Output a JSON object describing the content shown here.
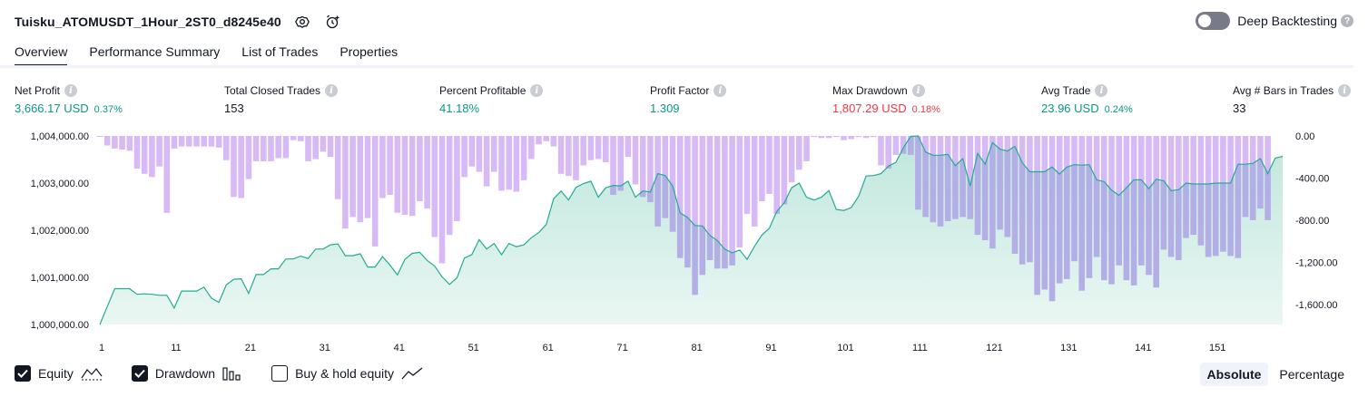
{
  "header": {
    "strategy_title": "Tuisku_ATOMUSDT_1Hour_2ST0_d8245e40",
    "deep_backtesting_label": "Deep Backtesting",
    "help_glyph": "?"
  },
  "tabs": [
    {
      "label": "Overview",
      "active": true
    },
    {
      "label": "Performance Summary",
      "active": false
    },
    {
      "label": "List of Trades",
      "active": false
    },
    {
      "label": "Properties",
      "active": false
    }
  ],
  "metrics": {
    "info_glyph": "i",
    "net_profit": {
      "label": "Net Profit",
      "value": "3,666.17 USD",
      "pct": "0.37%"
    },
    "total_closed_trades": {
      "label": "Total Closed Trades",
      "value": "153"
    },
    "percent_profitable": {
      "label": "Percent Profitable",
      "value": "41.18%"
    },
    "profit_factor": {
      "label": "Profit Factor",
      "value": "1.309"
    },
    "max_drawdown": {
      "label": "Max Drawdown",
      "value": "1,807.29 USD",
      "pct": "0.18%"
    },
    "avg_trade": {
      "label": "Avg Trade",
      "value": "23.96 USD",
      "pct": "0.24%"
    },
    "avg_bars": {
      "label": "Avg # Bars in Trades",
      "value": "33"
    }
  },
  "legend": {
    "equity": {
      "label": "Equity",
      "checked": true
    },
    "drawdown": {
      "label": "Drawdown",
      "checked": true
    },
    "buy_hold": {
      "label": "Buy & hold equity",
      "checked": false
    }
  },
  "mode": {
    "absolute": "Absolute",
    "percentage": "Percentage",
    "selected": "Absolute"
  },
  "colors": {
    "equity_line": "#22ab94",
    "equity_fill": "#d4efe8",
    "drawdown_bar": "#d7b9f5",
    "drawdown_overlap": "#b4aee6",
    "loss": "#f23645",
    "profit": "#089981"
  },
  "chart_data": {
    "type": "area",
    "x_ticks": [
      "1",
      "11",
      "21",
      "31",
      "41",
      "51",
      "61",
      "71",
      "81",
      "91",
      "101",
      "111",
      "121",
      "131",
      "141",
      "151"
    ],
    "y_left_ticks": [
      "1,004,000.00",
      "1,003,000.00",
      "1,002,000.00",
      "1,001,000.00",
      "1,000,000.00"
    ],
    "y_right_ticks": [
      "0.00",
      "-400.00",
      "-800.00",
      "-1,200.00",
      "-1,600.00"
    ],
    "y_left_range": [
      1000000,
      1004000
    ],
    "y_right_range": [
      -1800,
      0
    ],
    "series": [
      {
        "name": "Equity",
        "values": [
          1000000,
          1000380,
          1000760,
          1000760,
          1000760,
          1000640,
          1000650,
          1000640,
          1000620,
          1000620,
          1000350,
          1000710,
          1000710,
          1000710,
          1000790,
          1000560,
          1000470,
          1000840,
          1000960,
          1000970,
          1000660,
          1001060,
          1001060,
          1001180,
          1001180,
          1001390,
          1001390,
          1001450,
          1001400,
          1001600,
          1001600,
          1001690,
          1001710,
          1001460,
          1001460,
          1001500,
          1001220,
          1001220,
          1001440,
          1001260,
          1001050,
          1001380,
          1001510,
          1001530,
          1001360,
          1001240,
          1001010,
          1000850,
          1000990,
          1001410,
          1001480,
          1001800,
          1001600,
          1001720,
          1001480,
          1001720,
          1001650,
          1001690,
          1001840,
          1001950,
          1002120,
          1002670,
          1002830,
          1002640,
          1002910,
          1002990,
          1003040,
          1002700,
          1002900,
          1002950,
          1002940,
          1003040,
          1002700,
          1002830,
          1002810,
          1003200,
          1003160,
          1002940,
          1002370,
          1002270,
          1002100,
          1002090,
          1001890,
          1001780,
          1001600,
          1001520,
          1001580,
          1001380,
          1001660,
          1001900,
          1002040,
          1002400,
          1002580,
          1002900,
          1003000,
          1002700,
          1002640,
          1002700,
          1002840,
          1002440,
          1002420,
          1002480,
          1002720,
          1003150,
          1003160,
          1003200,
          1003360,
          1003440,
          1003750,
          1003990,
          1004000,
          1003660,
          1003590,
          1003590,
          1003610,
          1003370,
          1003520,
          1002940,
          1003630,
          1003400,
          1003860,
          1003720,
          1003680,
          1003780,
          1003430,
          1003240,
          1003240,
          1003240,
          1003340,
          1003190,
          1003340,
          1003390,
          1003380,
          1003390,
          1003070,
          1003030,
          1002850,
          1002740,
          1002900,
          1003070,
          1003070,
          1002880,
          1003080,
          1003050,
          1002840,
          1002860,
          1003000,
          1002980,
          1002980,
          1002980,
          1003000,
          1003000,
          1003000,
          1003400,
          1003400,
          1003420,
          1003520,
          1003200,
          1003530,
          1003570
        ]
      },
      {
        "name": "Drawdown",
        "values": [
          -5,
          -90,
          -120,
          -130,
          -140,
          -310,
          -360,
          -390,
          -290,
          -730,
          -120,
          -100,
          -100,
          -100,
          -100,
          -100,
          -110,
          -230,
          -580,
          -590,
          -410,
          -240,
          -240,
          -240,
          -210,
          -210,
          -40,
          -50,
          -240,
          -220,
          -150,
          -200,
          -600,
          -880,
          -770,
          -820,
          -780,
          -1050,
          -590,
          -560,
          -730,
          -750,
          -760,
          -620,
          -690,
          -960,
          -1210,
          -940,
          -810,
          -390,
          -290,
          -340,
          -480,
          -340,
          -520,
          -510,
          -530,
          -420,
          -220,
          -80,
          -50,
          -100,
          -360,
          -380,
          -420,
          -280,
          -230,
          -220,
          -250,
          -560,
          -520,
          -200,
          -460,
          -580,
          -630,
          -860,
          -780,
          -910,
          -1160,
          -1250,
          -1510,
          -1320,
          -1180,
          -1260,
          -1260,
          -1230,
          -1060,
          -740,
          -860,
          -620,
          -550,
          -740,
          -650,
          -440,
          -320,
          -240,
          -10,
          -20,
          -20,
          -10,
          -40,
          -30,
          -10,
          -20,
          -10,
          -280,
          -310,
          -180,
          -170,
          -180,
          -700,
          -770,
          -820,
          -860,
          -810,
          -790,
          -770,
          -790,
          -940,
          -990,
          -1070,
          -890,
          -960,
          -1120,
          -1220,
          -1200,
          -1510,
          -1460,
          -1570,
          -1400,
          -1360,
          -1190,
          -1470,
          -1350,
          -1150,
          -1370,
          -1410,
          -1230,
          -1370,
          -1420,
          -1230,
          -1320,
          -1440,
          -1080,
          -1150,
          -1180,
          -970,
          -940,
          -1040,
          -1150,
          -1140,
          -1100,
          -1140,
          -1160,
          -770,
          -800,
          -690,
          -800
        ]
      }
    ]
  }
}
